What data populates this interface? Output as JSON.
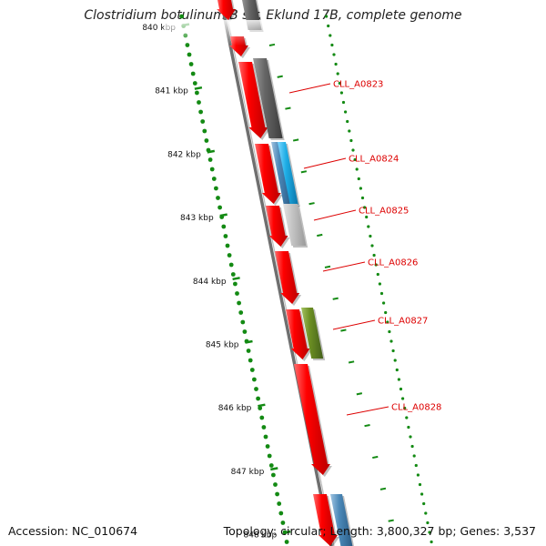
{
  "title": "Clostridium botulinum B str. Eklund 17B, complete genome",
  "accession_line": "Accession: NC_010674",
  "info_line": "Topology: circular; Length: 3,800,327 bp; Genes: 3,537",
  "colors": {
    "cds_red": "#ff0000",
    "label_red": "#dd0000",
    "backbone": "#6f6f6f",
    "tick_green": "#138a13",
    "gray_dark": "#666666",
    "gray_light": "#c4c4c4",
    "blue": "#1faee6",
    "steel_blue": "#4b88b8",
    "olive": "#6b8e23"
  },
  "scale_ticks": [
    {
      "label": "840 kbp"
    },
    {
      "label": "841 kbp"
    },
    {
      "label": "842 kbp"
    },
    {
      "label": "843 kbp"
    },
    {
      "label": "844 kbp"
    },
    {
      "label": "845 kbp"
    },
    {
      "label": "846 kbp"
    },
    {
      "label": "847 kbp"
    },
    {
      "label": "848 kbp"
    }
  ],
  "gene_labels": [
    {
      "text": "CLL_A0823"
    },
    {
      "text": "CLL_A0824"
    },
    {
      "text": "CLL_A0825"
    },
    {
      "text": "CLL_A0826"
    },
    {
      "text": "CLL_A0827"
    },
    {
      "text": "CLL_A0828"
    }
  ]
}
